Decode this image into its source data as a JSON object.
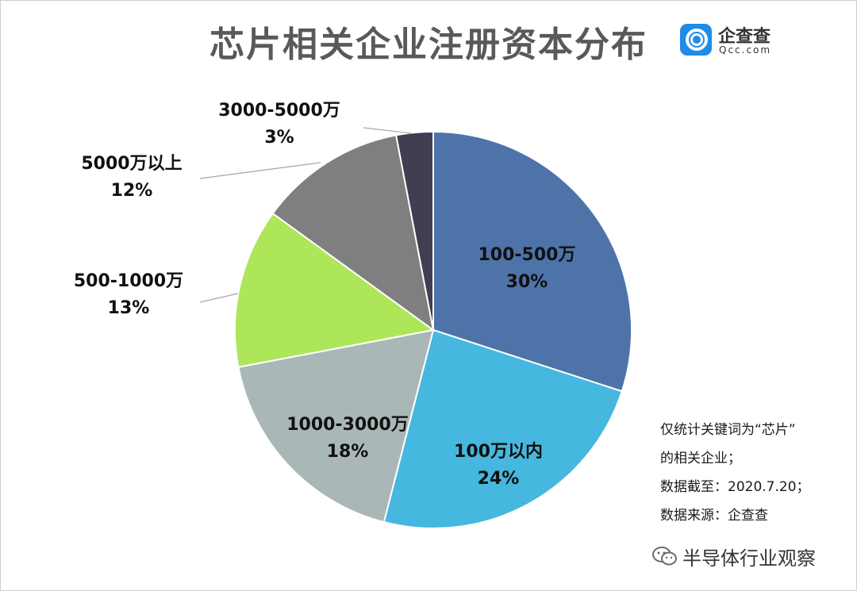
{
  "title": "芯片相关企业注册资本分布",
  "logo": {
    "name": "企查查",
    "domain": "Qcc.com"
  },
  "chart_data": {
    "type": "pie",
    "slices": [
      {
        "label": "100-500万",
        "value": 30,
        "percent": "30%",
        "color": "#4e73a8"
      },
      {
        "label": "100万以内",
        "value": 24,
        "percent": "24%",
        "color": "#46b7de"
      },
      {
        "label": "1000-3000万",
        "value": 18,
        "percent": "18%",
        "color": "#a9b8b7"
      },
      {
        "label": "500-1000万",
        "value": 13,
        "percent": "13%",
        "color": "#aee65a"
      },
      {
        "label": "5000万以上",
        "value": 12,
        "percent": "12%",
        "color": "#7f7f7f"
      },
      {
        "label": "3000-5000万",
        "value": 3,
        "percent": "3%",
        "color": "#403f51"
      }
    ]
  },
  "notes": [
    "仅统计关键词为“芯片”",
    "的相关企业；",
    "数据截至：2020.7.20；",
    "数据来源：企查查"
  ],
  "watermark": "半导体行业观察"
}
